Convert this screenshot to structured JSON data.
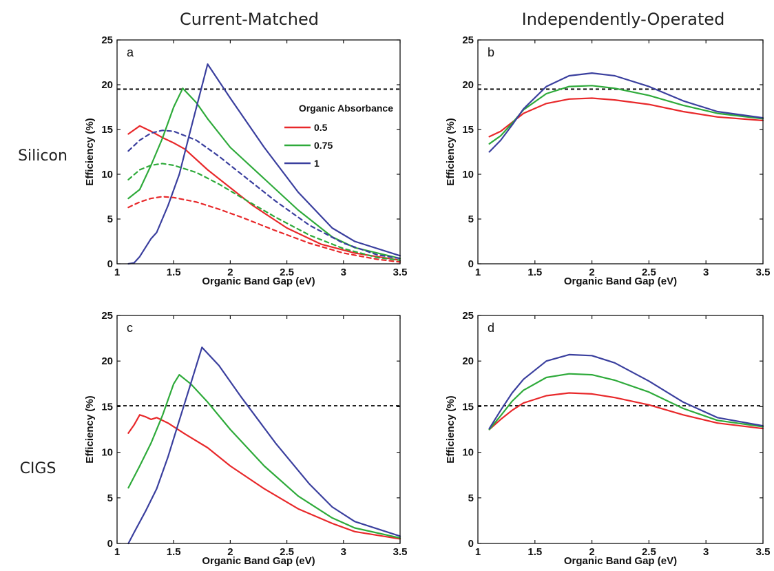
{
  "figure": {
    "column_titles": [
      "Current-Matched",
      "Independently-Operated"
    ],
    "row_labels": [
      "Silicon",
      "CIGS"
    ],
    "colors": {
      "0.5": "#e8282a",
      "0.75": "#2eaa3a",
      "1": "#3a3f9e",
      "reference": "#222222"
    }
  },
  "chart_data": [
    {
      "panel": "a",
      "type": "line",
      "xlabel": "Organic Band Gap  (eV)",
      "ylabel": "Efficiency  (%)",
      "xlim": [
        1,
        3.5
      ],
      "ylim": [
        0,
        25
      ],
      "xticks": [
        "1",
        "1.5",
        "2",
        "2.5",
        "3",
        "3.5"
      ],
      "yticks": [
        "0",
        "5",
        "10",
        "15",
        "20",
        "25"
      ],
      "reference_line": 19.5,
      "legend": {
        "title": "Organic Absorbance",
        "position": "upper-right",
        "entries": [
          "0.5",
          "0.75",
          "1"
        ]
      },
      "series": [
        {
          "name": "0.5",
          "style": "solid",
          "x": [
            1.1,
            1.2,
            1.3,
            1.4,
            1.5,
            1.6,
            1.8,
            2.0,
            2.2,
            2.5,
            2.8,
            3.1,
            3.5
          ],
          "y": [
            14.5,
            15.4,
            14.8,
            14.1,
            13.5,
            12.8,
            10.5,
            8.5,
            6.5,
            4.0,
            2.2,
            1.2,
            0.4
          ]
        },
        {
          "name": "0.75",
          "style": "solid",
          "x": [
            1.1,
            1.2,
            1.3,
            1.4,
            1.5,
            1.58,
            1.7,
            1.8,
            2.0,
            2.3,
            2.6,
            2.9,
            3.1,
            3.5
          ],
          "y": [
            7.3,
            8.3,
            11.0,
            14.0,
            17.5,
            19.6,
            18.0,
            16.2,
            13.0,
            9.5,
            6.0,
            3.0,
            1.8,
            0.6
          ]
        },
        {
          "name": "1",
          "style": "solid",
          "x": [
            1.1,
            1.15,
            1.2,
            1.3,
            1.35,
            1.45,
            1.55,
            1.65,
            1.8,
            2.0,
            2.3,
            2.6,
            2.9,
            3.1,
            3.5
          ],
          "y": [
            0,
            0.1,
            0.8,
            2.8,
            3.5,
            6.5,
            10.0,
            15.0,
            22.3,
            18.5,
            13.0,
            8.0,
            4.0,
            2.5,
            0.9
          ]
        },
        {
          "name": "0.5 dashed",
          "style": "dashed",
          "x": [
            1.1,
            1.2,
            1.3,
            1.4,
            1.5,
            1.7,
            1.9,
            2.1,
            2.4,
            2.7,
            3.0,
            3.3,
            3.5
          ],
          "y": [
            6.3,
            6.9,
            7.3,
            7.5,
            7.4,
            6.9,
            6.1,
            5.2,
            3.7,
            2.3,
            1.2,
            0.5,
            0.2
          ]
        },
        {
          "name": "0.75 dashed",
          "style": "dashed",
          "x": [
            1.1,
            1.2,
            1.3,
            1.4,
            1.5,
            1.7,
            1.9,
            2.1,
            2.4,
            2.7,
            3.0,
            3.3,
            3.5
          ],
          "y": [
            9.4,
            10.5,
            11.0,
            11.2,
            11.0,
            10.2,
            8.9,
            7.4,
            5.2,
            3.2,
            1.7,
            0.7,
            0.4
          ]
        },
        {
          "name": "1 dashed",
          "style": "dashed",
          "x": [
            1.1,
            1.2,
            1.3,
            1.4,
            1.5,
            1.7,
            1.9,
            2.1,
            2.4,
            2.7,
            3.0,
            3.3,
            3.5
          ],
          "y": [
            12.6,
            13.8,
            14.6,
            14.9,
            14.8,
            13.8,
            12.0,
            10.0,
            7.0,
            4.3,
            2.3,
            1.0,
            0.6
          ]
        }
      ]
    },
    {
      "panel": "b",
      "type": "line",
      "xlabel": "Organic Band Gap  (eV)",
      "ylabel": "Efficiency  (%)",
      "xlim": [
        1,
        3.5
      ],
      "ylim": [
        0,
        25
      ],
      "xticks": [
        "1",
        "1.5",
        "2",
        "2.5",
        "3",
        "3.5"
      ],
      "yticks": [
        "0",
        "5",
        "10",
        "15",
        "20",
        "25"
      ],
      "reference_line": 19.5,
      "series": [
        {
          "name": "0.5",
          "style": "solid",
          "x": [
            1.1,
            1.2,
            1.3,
            1.4,
            1.6,
            1.8,
            2.0,
            2.2,
            2.5,
            2.8,
            3.1,
            3.5
          ],
          "y": [
            14.2,
            14.8,
            15.8,
            16.8,
            17.9,
            18.4,
            18.5,
            18.3,
            17.8,
            17.0,
            16.4,
            16.0
          ]
        },
        {
          "name": "0.75",
          "style": "solid",
          "x": [
            1.1,
            1.2,
            1.3,
            1.4,
            1.6,
            1.8,
            2.0,
            2.2,
            2.5,
            2.8,
            3.1,
            3.5
          ],
          "y": [
            13.4,
            14.3,
            15.7,
            17.2,
            19.0,
            19.8,
            19.9,
            19.6,
            18.8,
            17.7,
            16.8,
            16.2
          ]
        },
        {
          "name": "1",
          "style": "solid",
          "x": [
            1.1,
            1.2,
            1.3,
            1.4,
            1.6,
            1.8,
            2.0,
            2.2,
            2.5,
            2.8,
            3.1,
            3.5
          ],
          "y": [
            12.5,
            13.8,
            15.5,
            17.3,
            19.8,
            21.0,
            21.3,
            21.0,
            19.8,
            18.2,
            17.0,
            16.3
          ]
        }
      ]
    },
    {
      "panel": "c",
      "type": "line",
      "xlabel": "Organic Band Gap  (eV)",
      "ylabel": "Efficiency  (%)",
      "xlim": [
        1,
        3.5
      ],
      "ylim": [
        0,
        25
      ],
      "xticks": [
        "1",
        "1.5",
        "2",
        "2.5",
        "3",
        "3.5"
      ],
      "yticks": [
        "0",
        "5",
        "10",
        "15",
        "20",
        "25"
      ],
      "reference_line": 15.1,
      "series": [
        {
          "name": "0.5",
          "style": "solid",
          "x": [
            1.1,
            1.15,
            1.2,
            1.25,
            1.3,
            1.35,
            1.45,
            1.6,
            1.8,
            2.0,
            2.3,
            2.6,
            2.9,
            3.1,
            3.5
          ],
          "y": [
            12.1,
            13.0,
            14.1,
            13.9,
            13.6,
            13.8,
            13.2,
            12.0,
            10.5,
            8.5,
            6.0,
            3.8,
            2.2,
            1.3,
            0.5
          ]
        },
        {
          "name": "0.75",
          "style": "solid",
          "x": [
            1.1,
            1.2,
            1.3,
            1.4,
            1.5,
            1.55,
            1.65,
            1.8,
            2.0,
            2.3,
            2.6,
            2.9,
            3.1,
            3.5
          ],
          "y": [
            6.1,
            8.5,
            11.0,
            14.0,
            17.5,
            18.5,
            17.5,
            15.5,
            12.5,
            8.5,
            5.2,
            2.8,
            1.7,
            0.6
          ]
        },
        {
          "name": "1",
          "style": "solid",
          "x": [
            1.1,
            1.15,
            1.25,
            1.35,
            1.45,
            1.55,
            1.65,
            1.75,
            1.9,
            2.1,
            2.4,
            2.7,
            2.9,
            3.1,
            3.5
          ],
          "y": [
            0,
            1.2,
            3.5,
            6.0,
            9.5,
            13.5,
            17.5,
            21.5,
            19.5,
            16.0,
            11.0,
            6.5,
            4.0,
            2.4,
            0.8
          ]
        }
      ]
    },
    {
      "panel": "d",
      "type": "line",
      "xlabel": "Organic Band Gap  (eV)",
      "ylabel": "Efficiency  (%)",
      "xlim": [
        1,
        3.5
      ],
      "ylim": [
        0,
        25
      ],
      "xticks": [
        "1",
        "1.5",
        "2",
        "2.5",
        "3",
        "3.5"
      ],
      "yticks": [
        "0",
        "5",
        "10",
        "15",
        "20",
        "25"
      ],
      "reference_line": 15.1,
      "series": [
        {
          "name": "0.5",
          "style": "solid",
          "x": [
            1.1,
            1.2,
            1.3,
            1.4,
            1.6,
            1.8,
            2.0,
            2.2,
            2.5,
            2.8,
            3.1,
            3.5
          ],
          "y": [
            12.5,
            13.6,
            14.6,
            15.4,
            16.2,
            16.5,
            16.4,
            16.0,
            15.2,
            14.1,
            13.2,
            12.6
          ]
        },
        {
          "name": "0.75",
          "style": "solid",
          "x": [
            1.1,
            1.2,
            1.3,
            1.4,
            1.6,
            1.8,
            2.0,
            2.2,
            2.5,
            2.8,
            3.1,
            3.5
          ],
          "y": [
            12.5,
            14.0,
            15.6,
            16.8,
            18.2,
            18.6,
            18.5,
            17.9,
            16.6,
            14.8,
            13.5,
            12.8
          ]
        },
        {
          "name": "1",
          "style": "solid",
          "x": [
            1.1,
            1.2,
            1.3,
            1.4,
            1.6,
            1.8,
            2.0,
            2.2,
            2.5,
            2.8,
            3.1,
            3.5
          ],
          "y": [
            12.6,
            14.6,
            16.5,
            18.0,
            20.0,
            20.7,
            20.6,
            19.8,
            17.8,
            15.5,
            13.8,
            12.9
          ]
        }
      ]
    }
  ]
}
